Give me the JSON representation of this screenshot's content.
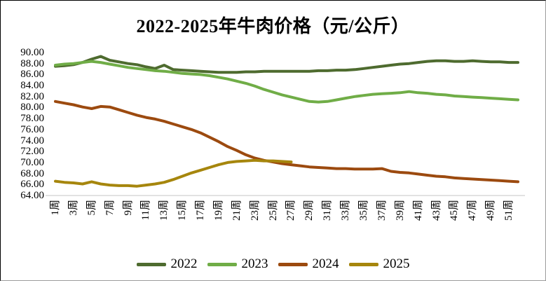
{
  "title": "2022-2025年牛肉价格（元/公斤）",
  "chart_data": {
    "type": "line",
    "title": "2022-2025年牛肉价格（元/公斤）",
    "x_unit": "周",
    "x_tick_labels": [
      "1周",
      "3周",
      "5周",
      "7周",
      "9周",
      "11周",
      "13周",
      "15周",
      "17周",
      "19周",
      "21周",
      "23周",
      "25周",
      "27周",
      "29周",
      "31周",
      "33周",
      "35周",
      "37周",
      "39周",
      "41周",
      "43周",
      "45周",
      "47周",
      "49周",
      "51周"
    ],
    "x_tick_weeks": [
      1,
      3,
      5,
      7,
      9,
      11,
      13,
      15,
      17,
      19,
      21,
      23,
      25,
      27,
      29,
      31,
      33,
      35,
      37,
      39,
      41,
      43,
      45,
      47,
      49,
      51
    ],
    "ylim": [
      64,
      90
    ],
    "ytick_labels": [
      "90.00",
      "88.00",
      "86.00",
      "84.00",
      "82.00",
      "80.00",
      "78.00",
      "76.00",
      "74.00",
      "72.00",
      "70.00",
      "68.00",
      "66.00",
      "64.00"
    ],
    "ytick_values": [
      90,
      88,
      86,
      84,
      82,
      80,
      78,
      76,
      74,
      72,
      70,
      68,
      66,
      64
    ],
    "grid": "off",
    "axis_line_color": "#d9d9d9",
    "legend_position": "bottom",
    "series": [
      {
        "name": "2022",
        "color": "#4e6b2f",
        "start_week": 1,
        "values": [
          87.5,
          87.6,
          87.8,
          88.2,
          88.8,
          89.3,
          88.6,
          88.3,
          88.0,
          87.8,
          87.4,
          87.1,
          87.7,
          86.9,
          86.8,
          86.7,
          86.6,
          86.5,
          86.4,
          86.4,
          86.4,
          86.5,
          86.5,
          86.6,
          86.6,
          86.6,
          86.6,
          86.6,
          86.6,
          86.7,
          86.7,
          86.8,
          86.8,
          86.9,
          87.1,
          87.3,
          87.5,
          87.7,
          87.9,
          88.0,
          88.2,
          88.4,
          88.5,
          88.5,
          88.4,
          88.4,
          88.5,
          88.4,
          88.3,
          88.3,
          88.2,
          88.2
        ]
      },
      {
        "name": "2023",
        "color": "#70ad47",
        "start_week": 1,
        "values": [
          87.7,
          87.9,
          88.0,
          88.2,
          88.4,
          88.2,
          87.9,
          87.6,
          87.3,
          87.1,
          86.9,
          86.7,
          86.6,
          86.4,
          86.2,
          86.1,
          86.0,
          85.8,
          85.5,
          85.2,
          84.8,
          84.4,
          83.9,
          83.3,
          82.8,
          82.3,
          81.9,
          81.5,
          81.1,
          81.0,
          81.1,
          81.4,
          81.7,
          82.0,
          82.2,
          82.4,
          82.5,
          82.6,
          82.7,
          82.9,
          82.7,
          82.6,
          82.4,
          82.3,
          82.1,
          82.0,
          81.9,
          81.8,
          81.7,
          81.6,
          81.5,
          81.4
        ]
      },
      {
        "name": "2024",
        "color": "#9c4a0f",
        "start_week": 1,
        "values": [
          81.1,
          80.8,
          80.5,
          80.1,
          79.8,
          80.2,
          80.1,
          79.6,
          79.1,
          78.6,
          78.2,
          77.9,
          77.5,
          77.0,
          76.5,
          76.0,
          75.4,
          74.6,
          73.8,
          72.9,
          72.2,
          71.4,
          70.8,
          70.4,
          70.1,
          69.8,
          69.6,
          69.4,
          69.2,
          69.1,
          69.0,
          68.9,
          68.9,
          68.8,
          68.8,
          68.8,
          68.9,
          68.4,
          68.2,
          68.1,
          67.9,
          67.7,
          67.5,
          67.4,
          67.2,
          67.1,
          67.0,
          66.9,
          66.8,
          66.7,
          66.6,
          66.5
        ]
      },
      {
        "name": "2025",
        "color": "#a6860d",
        "start_week": 1,
        "values": [
          66.6,
          66.4,
          66.3,
          66.1,
          66.5,
          66.1,
          65.9,
          65.8,
          65.8,
          65.7,
          65.9,
          66.1,
          66.4,
          66.9,
          67.5,
          68.1,
          68.6,
          69.1,
          69.6,
          70.0,
          70.2,
          70.3,
          70.4,
          70.3,
          70.3,
          70.2,
          70.1
        ]
      }
    ]
  }
}
